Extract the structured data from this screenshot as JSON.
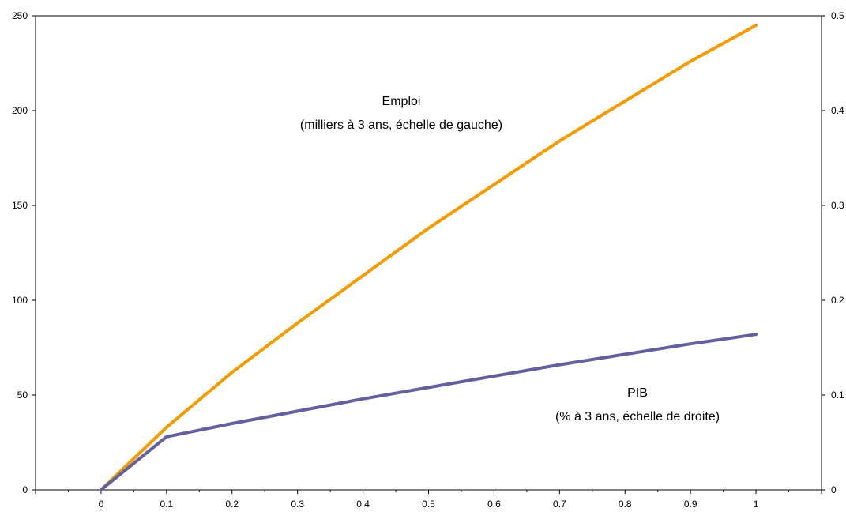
{
  "chart_data": {
    "type": "line",
    "title": "",
    "xlabel": "",
    "ylabel": "",
    "x": [
      0,
      0.1,
      0.2,
      0.3,
      0.4,
      0.5,
      0.6,
      0.7,
      0.8,
      0.9,
      1
    ],
    "x_tick_labels": [
      "0",
      "0.1",
      "0.2",
      "0.3",
      "0.4",
      "0.5",
      "0.6",
      "0.7",
      "0.8",
      "0.9",
      "1"
    ],
    "xlim": [
      -0.1,
      1.1
    ],
    "y_left_lim": [
      0,
      250
    ],
    "y_left_ticks": [
      "0",
      "50",
      "100",
      "150",
      "200",
      "250"
    ],
    "y_right_lim": [
      0,
      0.5
    ],
    "y_right_ticks": [
      "0",
      "0.1",
      "0.2",
      "0.3",
      "0.4",
      "0.5"
    ],
    "grid": false,
    "legend": "none",
    "series": [
      {
        "axis": "left",
        "color": "#F59B00",
        "values": [
          0,
          33,
          62,
          88,
          113,
          138,
          161,
          184,
          205,
          226,
          245
        ]
      },
      {
        "axis": "right",
        "color": "#62609E",
        "values": [
          0,
          0.056,
          0.07,
          0.083,
          0.096,
          0.108,
          0.12,
          0.132,
          0.143,
          0.154,
          0.164
        ]
      }
    ],
    "annotations": {
      "emploi_line1": "Emploi",
      "emploi_line2": "(milliers à 3 ans, échelle de gauche)",
      "pib_line1": "PIB",
      "pib_line2": "(% à 3 ans, échelle de droite)"
    }
  }
}
